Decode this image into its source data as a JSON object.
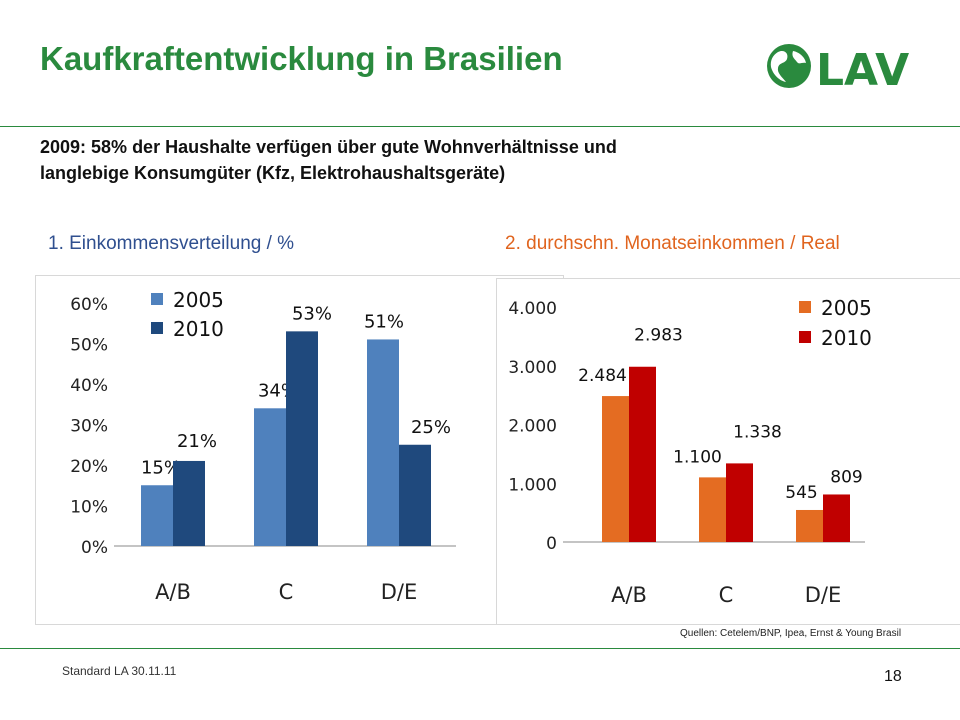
{
  "slide": {
    "title": "Kaufkraftentwicklung in Brasilien",
    "subtitle_line1": "2009: 58% der Haushalte verfügen über gute Wohnverhältnisse und",
    "subtitle_line2": "langlebige Konsumgüter (Kfz, Elektrohaushaltsgeräte)",
    "source": "Quellen: Cetelem/BNP, Ipea, Ernst & Young Brasil",
    "footer": "Standard LA 30.11.11",
    "page_number": "18",
    "logo": {
      "text": "LAV",
      "icon": "globe-icon",
      "color": "#2a8a3e"
    }
  },
  "chart_data": [
    {
      "type": "bar",
      "title": "1. Einkommensverteilung / %",
      "categories": [
        "A/B",
        "C",
        "D/E"
      ],
      "series": [
        {
          "name": "2005",
          "values": [
            15,
            34,
            51
          ],
          "labels": [
            "15%",
            "34%",
            "51%"
          ],
          "color": "#4f81bd"
        },
        {
          "name": "2010",
          "values": [
            21,
            53,
            25
          ],
          "labels": [
            "21%",
            "53%",
            "25%"
          ],
          "color": "#1f497d"
        }
      ],
      "y_ticks": [
        0,
        10,
        20,
        30,
        40,
        50,
        60
      ],
      "y_tick_labels": [
        "0%",
        "10%",
        "20%",
        "30%",
        "40%",
        "50%",
        "60%"
      ],
      "ylim": [
        0,
        60
      ],
      "legend": "top-left",
      "grid": false
    },
    {
      "type": "bar",
      "title": "2. durchschn. Monatseinkommen / Real",
      "categories": [
        "A/B",
        "C",
        "D/E"
      ],
      "series": [
        {
          "name": "2005",
          "values": [
            2484,
            1100,
            545
          ],
          "labels": [
            "2.484",
            "1.100",
            "545"
          ],
          "color": "#e46c22"
        },
        {
          "name": "2010",
          "values": [
            2983,
            1338,
            809
          ],
          "labels": [
            "2.983",
            "1.338",
            "809"
          ],
          "color": "#c00000"
        }
      ],
      "y_ticks": [
        0,
        1000,
        2000,
        3000,
        4000
      ],
      "y_tick_labels": [
        "0",
        "1.000",
        "2.000",
        "3.000",
        "4.000"
      ],
      "ylim": [
        0,
        4000
      ],
      "legend": "top-right",
      "grid": false
    }
  ]
}
